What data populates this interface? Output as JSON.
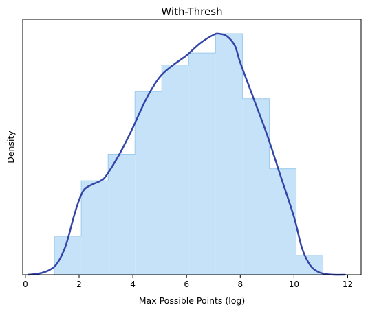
{
  "chart_data": {
    "type": "area",
    "title": "With-Thresh",
    "xlabel": "Max Possible Points (log)",
    "ylabel": "Density",
    "xlim": [
      -0.1,
      12.5
    ],
    "ylim": [
      0,
      1.06
    ],
    "x_ticks": [
      0,
      2,
      4,
      6,
      8,
      10,
      12
    ],
    "x_tick_labels": [
      "0",
      "2",
      "4",
      "6",
      "8",
      "10",
      "12"
    ],
    "y_ticks_visible": false,
    "grid": false,
    "legend": "none",
    "histogram": {
      "style": "step-filled",
      "bin_edges": [
        1.08,
        2.08,
        3.08,
        4.08,
        5.08,
        6.08,
        7.08,
        8.08,
        9.08,
        10.08,
        11.08
      ],
      "values": [
        0.16,
        0.39,
        0.5,
        0.76,
        0.87,
        0.92,
        1.0,
        0.73,
        0.44,
        0.08
      ],
      "fill_color": "#c6e2f8",
      "edge_color": "#9bcbee"
    },
    "kde": {
      "color": "#3346a8",
      "x": [
        0.1,
        0.5,
        0.9,
        1.2,
        1.5,
        1.8,
        2.0,
        2.2,
        2.5,
        2.8,
        3.0,
        3.5,
        4.0,
        4.5,
        5.0,
        5.5,
        6.0,
        6.5,
        7.0,
        7.2,
        7.5,
        7.8,
        8.0,
        8.5,
        9.0,
        9.5,
        10.0,
        10.3,
        10.6,
        10.9,
        11.2,
        11.5,
        11.9
      ],
      "y": [
        0.0,
        0.005,
        0.02,
        0.05,
        0.12,
        0.24,
        0.31,
        0.355,
        0.375,
        0.39,
        0.41,
        0.5,
        0.61,
        0.73,
        0.82,
        0.87,
        0.91,
        0.96,
        0.995,
        1.0,
        0.99,
        0.95,
        0.88,
        0.73,
        0.58,
        0.41,
        0.24,
        0.11,
        0.04,
        0.012,
        0.003,
        0.0,
        0.0
      ]
    }
  }
}
